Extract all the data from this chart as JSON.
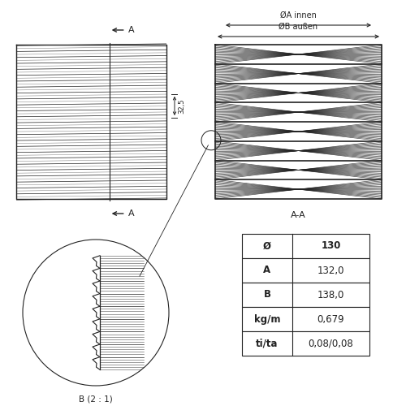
{
  "bg_color": "#ffffff",
  "line_color": "#222222",
  "table_rows": [
    [
      "Ø",
      "130"
    ],
    [
      "A",
      "132,0"
    ],
    [
      "B",
      "138,0"
    ],
    [
      "kg/m",
      "0,679"
    ],
    [
      "ti/ta",
      "0,08/0,08"
    ]
  ],
  "AA_label": "A-A",
  "A_label": "A",
  "B_label": "B (2 : 1)",
  "dim_label": "32,5",
  "phi_b_label": "ØB außen",
  "phi_a_label": "ØA innen"
}
